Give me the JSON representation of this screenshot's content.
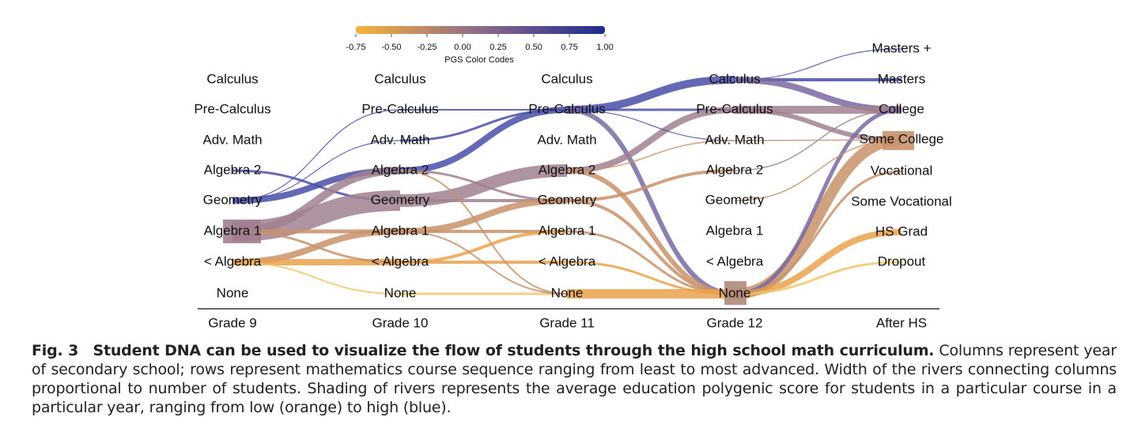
{
  "figure": {
    "colorbar": {
      "title": "PGS Color Codes",
      "ticks": [
        {
          "value": -0.75,
          "label": "-0.75"
        },
        {
          "value": -0.5,
          "label": "-0.50"
        },
        {
          "value": -0.25,
          "label": "-0.25"
        },
        {
          "value": 0,
          "label": "0.00"
        },
        {
          "value": 0.25,
          "label": "0.25"
        },
        {
          "value": 0.5,
          "label": "0.50"
        },
        {
          "value": 0.75,
          "label": "0.75"
        },
        {
          "value": 1,
          "label": "1.00"
        }
      ],
      "colors": [
        "#f7b23b",
        "#8c6a8a",
        "#1e2c8f"
      ]
    },
    "columns": [
      {
        "title": "Grade 9",
        "rows": [
          "Calculus",
          "Pre-Calculus",
          "Adv. Math",
          "Algebra 2",
          "Geometry",
          "Algebra 1",
          "< Algebra",
          "None"
        ]
      },
      {
        "title": "Grade 10",
        "rows": [
          "Calculus",
          "Pre-Calculus",
          "Adv. Math",
          "Algebra 2",
          "Geometry",
          "Algebra 1",
          "< Algebra",
          "None"
        ]
      },
      {
        "title": "Grade 11",
        "rows": [
          "Calculus",
          "Pre-Calculus",
          "Adv. Math",
          "Algebra 2",
          "Geometry",
          "Algebra 1",
          "< Algebra",
          "None"
        ]
      },
      {
        "title": "Grade 12",
        "rows": [
          "Calculus",
          "Pre-Calculus",
          "Adv. Math",
          "Algebra 2",
          "Geometry",
          "Algebra 1",
          "< Algebra",
          "None"
        ]
      },
      {
        "title": "After HS",
        "rows": [
          "Masters +",
          "Masters",
          "College",
          "Some College",
          "Vocational",
          "Some Vocational",
          "HS Grad",
          "Dropout"
        ]
      }
    ],
    "caption": {
      "label": "Fig. 3",
      "title": "Student DNA can be used to visualize the flow of students through the high school math curriculum.",
      "text": "Columns represent year of secondary school; rows represent mathematics course sequence ranging from least to most advanced. Width of the rivers connecting columns proportional to number of students. Shading of rivers represents the average education polygenic score for students in a particular course in a particular year, ranging from low (orange) to high (blue)."
    }
  }
}
